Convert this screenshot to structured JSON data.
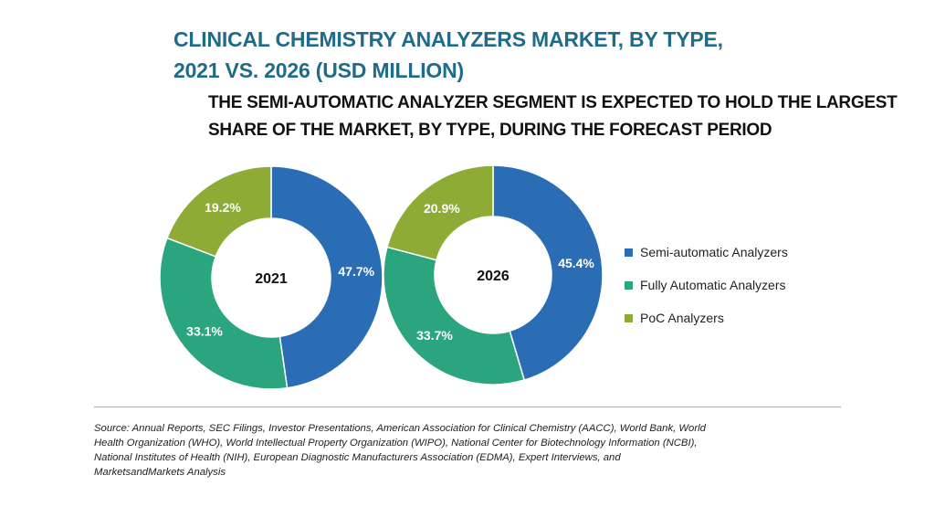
{
  "title_lines": [
    "CLINICAL CHEMISTRY ANALYZERS MARKET, BY TYPE,",
    "2021 VS. 2026 (USD MILLION)"
  ],
  "subtitle_lines": [
    "THE SEMI-AUTOMATIC ANALYZER SEGMENT IS EXPECTED TO HOLD THE LARGEST",
    "SHARE OF THE MARKET, BY TYPE, DURING THE FORECAST PERIOD"
  ],
  "colors": {
    "title": "#1f6b8a",
    "divider": "#c9ad6a"
  },
  "chart_data": {
    "type": "pie",
    "variant": "donut",
    "categories": [
      "Semi-automatic Analyzers",
      "Fully Automatic Analyzers",
      "PoC Analyzers"
    ],
    "colors": [
      "#2a6db5",
      "#2aa57e",
      "#8eab36"
    ],
    "charts": [
      {
        "center_label": "2021",
        "values": [
          47.7,
          33.1,
          19.2
        ],
        "labels": [
          "47.7%",
          "33.1%",
          "19.2%"
        ]
      },
      {
        "center_label": "2026",
        "values": [
          45.4,
          33.7,
          20.9
        ],
        "labels": [
          "45.4%",
          "33.7%",
          "20.9%"
        ]
      }
    ],
    "legend": {
      "position": "right",
      "entries": [
        "Semi-automatic Analyzers",
        "Fully Automatic Analyzers",
        "PoC Analyzers"
      ]
    }
  },
  "source_lines": [
    "Source: Annual Reports, SEC Filings, Investor Presentations, American Association for Clinical Chemistry (AACC), World Bank, World",
    "Health Organization (WHO), World Intellectual Property Organization (WIPO), National Center for Biotechnology Information (NCBI),",
    "National Institutes of Health (NIH), European Diagnostic Manufacturers Association (EDMA), Expert Interviews, and",
    "MarketsandMarkets Analysis"
  ]
}
